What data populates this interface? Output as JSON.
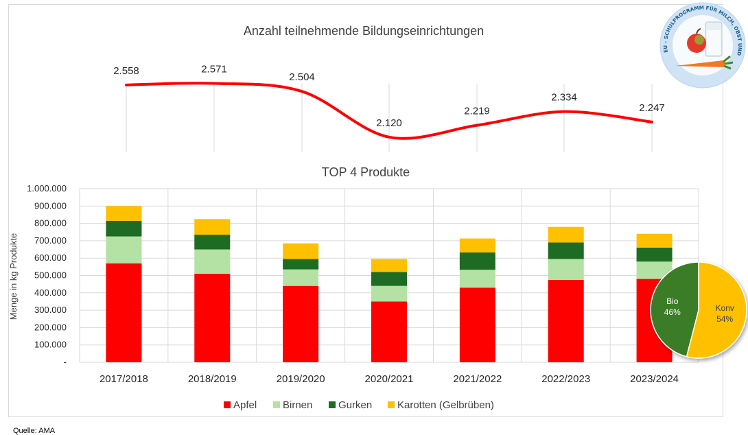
{
  "source": "Quelle: AMA",
  "logo": {
    "text": "EU - SCHULPROGRAMM FÜR MILCH, OBST UND GEMÜSE",
    "colors": {
      "ring": "#cfe3f5",
      "apple": "#e43a2a",
      "carrot": "#f07a24",
      "glass": "#e9f0f4"
    }
  },
  "chart_data": [
    {
      "type": "line",
      "title": "Anzahl teilnehmende Bildungseinrichtungen",
      "x": [
        "2017/2018",
        "2018/2019",
        "2019/2020",
        "2020/2021",
        "2021/2022",
        "2022/2023",
        "2023/2024"
      ],
      "values": [
        2558,
        2571,
        2504,
        2120,
        2219,
        2334,
        2247
      ],
      "labels": [
        "2.558",
        "2.571",
        "2.504",
        "2.120",
        "2.219",
        "2.334",
        "2.247"
      ],
      "color": "#ff0000",
      "smooth": true
    },
    {
      "type": "bar",
      "stacked": true,
      "title": "TOP 4 Produkte",
      "ylabel": "Menge in kg Produkte",
      "ylim": [
        0,
        1000000
      ],
      "yticks": [
        "-",
        "100.000",
        "200.000",
        "300.000",
        "400.000",
        "500.000",
        "600.000",
        "700.000",
        "800.000",
        "900.000",
        "1.000.000"
      ],
      "categories": [
        "2017/2018",
        "2018/2019",
        "2019/2020",
        "2020/2021",
        "2021/2022",
        "2022/2023",
        "2023/2024"
      ],
      "series": [
        {
          "name": "Apfel",
          "color": "#ff0000",
          "values": [
            570000,
            510000,
            440000,
            350000,
            430000,
            475000,
            480000
          ]
        },
        {
          "name": "Birnen",
          "color": "#b3e2a4",
          "values": [
            155000,
            140000,
            95000,
            90000,
            103000,
            120000,
            100000
          ]
        },
        {
          "name": "Gurken",
          "color": "#1e6b23",
          "values": [
            90000,
            85000,
            60000,
            80000,
            100000,
            95000,
            80000
          ]
        },
        {
          "name": "Karotten (Gelbrüben)",
          "color": "#ffc000",
          "values": [
            85000,
            90000,
            90000,
            75000,
            80000,
            90000,
            80000
          ]
        }
      ],
      "grid": true,
      "legend": "bottom"
    },
    {
      "type": "pie",
      "slices": [
        {
          "name": "Bio",
          "value": 46,
          "label": "46%",
          "color": "#3a7d28",
          "text_color": "#ffffff"
        },
        {
          "name": "Konv",
          "value": 54,
          "label": "54%",
          "color": "#ffc000",
          "text_color": "#404040"
        }
      ]
    }
  ]
}
